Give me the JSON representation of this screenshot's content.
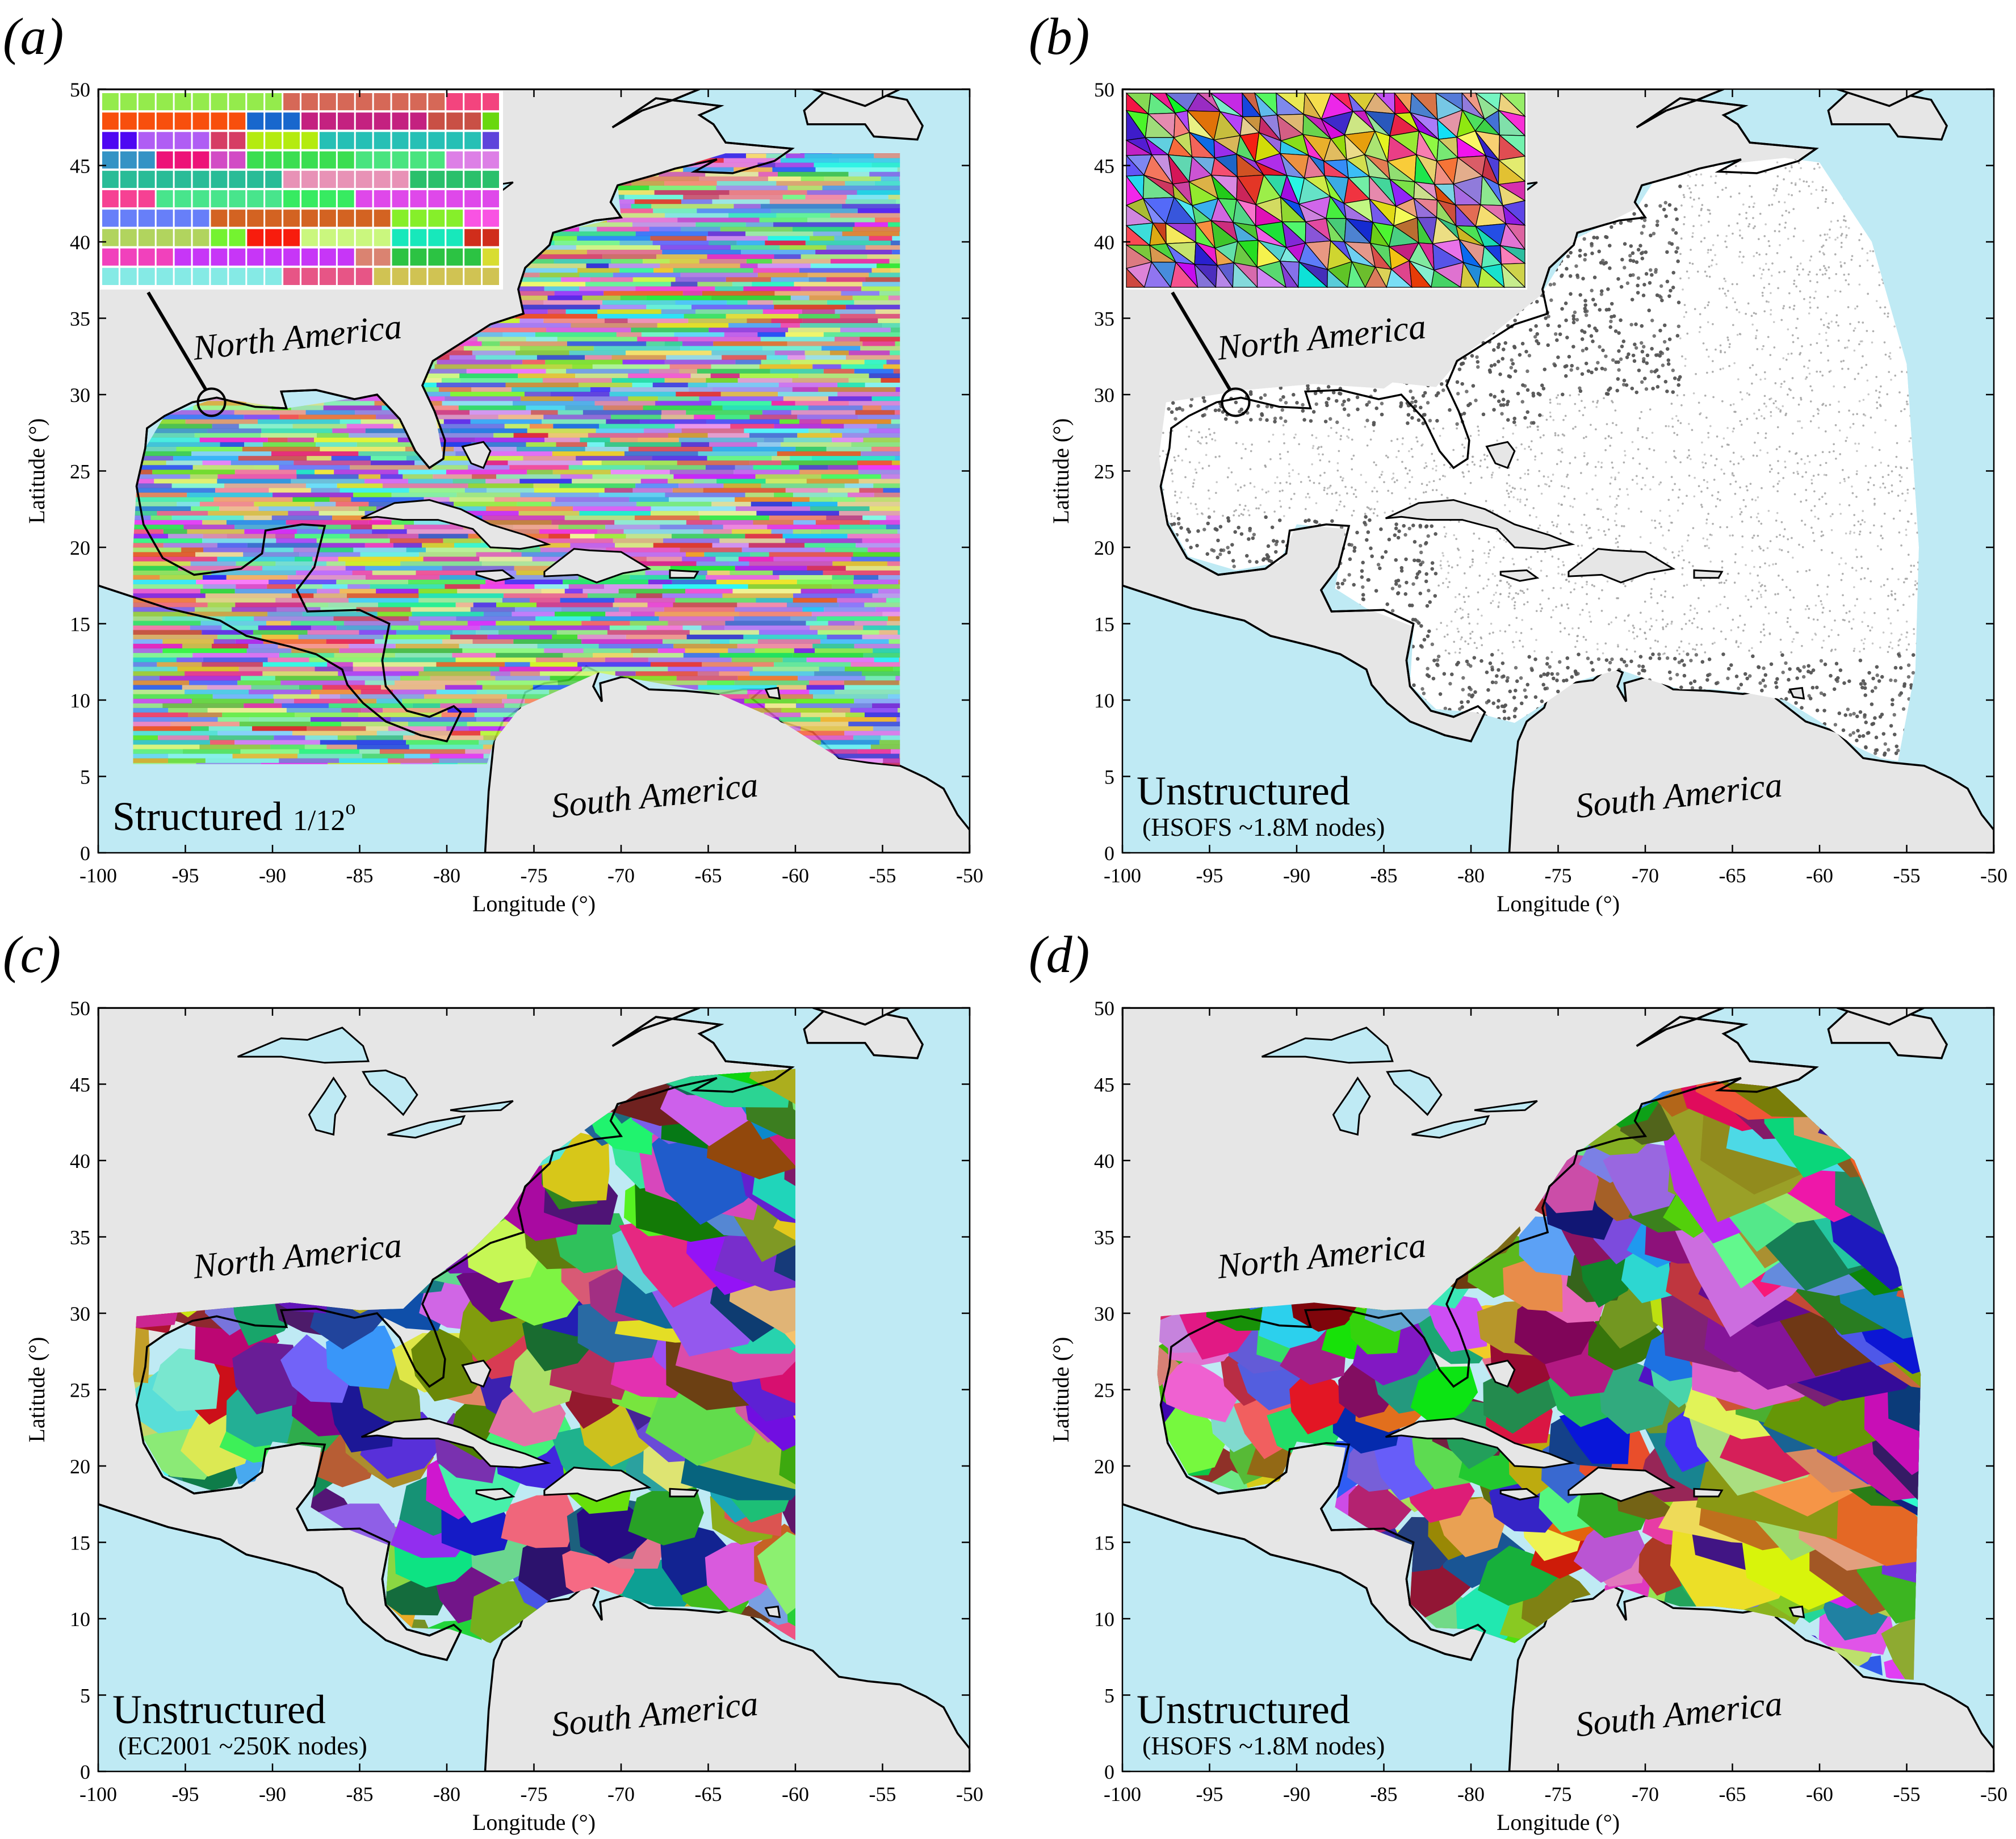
{
  "figure": {
    "panels": [
      {
        "id": "a",
        "panel_label": "(a)",
        "method_title": "Structured",
        "method_subtitle": "1/12",
        "method_subtitle_sup": "o",
        "mesh_style": "structured",
        "continent_north": "North America",
        "continent_south": "South America",
        "xlabel": "Longitude (°)",
        "ylabel": "Latitude (°)",
        "has_inset": true,
        "inset_type": "grid"
      },
      {
        "id": "b",
        "panel_label": "(b)",
        "method_title": "Unstructured",
        "method_subtitle": "(HSOFS ~1.8M nodes)",
        "method_subtitle_sup": "",
        "mesh_style": "points",
        "continent_north": "North America",
        "continent_south": "South America",
        "xlabel": "Longitude (°)",
        "ylabel": "Latitude (°)",
        "has_inset": true,
        "inset_type": "triangles"
      },
      {
        "id": "c",
        "panel_label": "(c)",
        "method_title": "Unstructured",
        "method_subtitle": "(EC2001 ~250K nodes)",
        "method_subtitle_sup": "",
        "mesh_style": "partitions-ec2001",
        "continent_north": "North America",
        "continent_south": "South America",
        "xlabel": "Longitude (°)",
        "ylabel": "Latitude (°)",
        "has_inset": false,
        "inset_type": ""
      },
      {
        "id": "d",
        "panel_label": "(d)",
        "method_title": "Unstructured",
        "method_subtitle": "(HSOFS ~1.8M nodes)",
        "method_subtitle_sup": "",
        "mesh_style": "partitions-hsofs",
        "continent_north": "North America",
        "continent_south": "South America",
        "xlabel": "Longitude (°)",
        "ylabel": "Latitude (°)",
        "has_inset": false,
        "inset_type": ""
      }
    ],
    "axes": {
      "xlim": [
        -100,
        -50
      ],
      "ylim": [
        0,
        50
      ],
      "xticks": [
        -100,
        -95,
        -90,
        -85,
        -80,
        -75,
        -70,
        -65,
        -60,
        -55,
        -50
      ],
      "yticks": [
        0,
        5,
        10,
        15,
        20,
        25,
        30,
        35,
        40,
        45,
        50
      ],
      "xtick_labels": [
        "-100",
        "-95",
        "-90",
        "-85",
        "-80",
        "-75",
        "-70",
        "-65",
        "-60",
        "-55",
        "-50"
      ],
      "ytick_labels": [
        "0",
        "5",
        "10",
        "15",
        "20",
        "25",
        "30",
        "35",
        "40",
        "45",
        "50"
      ]
    },
    "colors": {
      "ocean": "#bfeaf4",
      "land": "#e6e6e6",
      "coast": "#000000",
      "mesh_dot": "#8a8a8a"
    }
  }
}
